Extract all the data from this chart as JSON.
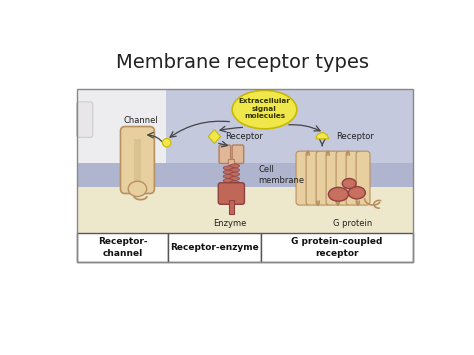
{
  "title": "Membrane receptor types",
  "title_fontsize": 14,
  "bg_color": "#ffffff",
  "diagram_bg_bottom": "#ede8cc",
  "diagram_bg_top": "#c5c9de",
  "membrane_color": "#b0b5cf",
  "white_panel_color": "#f0eff0",
  "extracellular_bubble_color": "#f0e84a",
  "extracellular_bubble_edge": "#c8b800",
  "extracellular_bubble_text": "Extracellular\nsignal\nmolecules",
  "receptor_channel_color": "#e8cfa0",
  "receptor_channel_edge": "#b89060",
  "enzyme_top_color": "#e0b898",
  "enzyme_top_edge": "#b08060",
  "enzyme_bottom_color": "#c06858",
  "enzyme_bottom_edge": "#904040",
  "gpc_helix_color": "#e8cfa0",
  "gpc_helix_edge": "#b89060",
  "g_protein_color": "#c87060",
  "g_protein_edge": "#904040",
  "signal_mol_color": "#f0e84a",
  "signal_mol_edge": "#c8b800",
  "arrow_color": "#444444",
  "label_channel": "Channel",
  "label_receptor1": "Receptor",
  "label_receptor2": "Receptor",
  "label_enzyme": "Enzyme",
  "label_cell_membrane": "Cell\nmembrane",
  "label_g_protein": "G protein",
  "box1_text": "Receptor-\nchannel",
  "box2_text": "Receptor-enzyme",
  "box3_text": "G protein-coupled\nreceptor",
  "diagram_border": "#888888",
  "box_border": "#555555"
}
